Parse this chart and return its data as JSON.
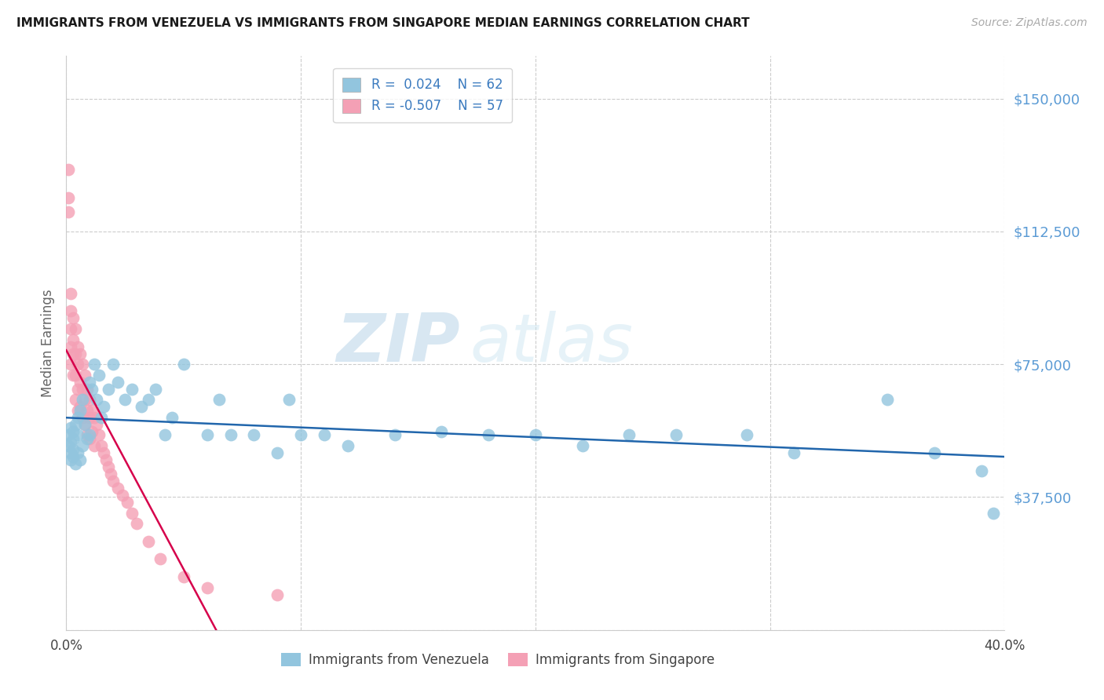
{
  "title": "IMMIGRANTS FROM VENEZUELA VS IMMIGRANTS FROM SINGAPORE MEDIAN EARNINGS CORRELATION CHART",
  "source": "Source: ZipAtlas.com",
  "ylabel": "Median Earnings",
  "xlim": [
    0.0,
    0.4
  ],
  "ylim": [
    0,
    162000
  ],
  "yticks": [
    0,
    37500,
    75000,
    112500,
    150000
  ],
  "ytick_labels": [
    "",
    "$37,500",
    "$75,000",
    "$112,500",
    "$150,000"
  ],
  "xticks": [
    0.0,
    0.1,
    0.2,
    0.3,
    0.4
  ],
  "xtick_labels": [
    "0.0%",
    "",
    "",
    "",
    "40.0%"
  ],
  "blue_color": "#92c5de",
  "pink_color": "#f4a0b5",
  "blue_line_color": "#2166ac",
  "pink_line_color": "#d6004b",
  "watermark_zip": "ZIP",
  "watermark_atlas": "atlas",
  "venezuela_x": [
    0.001,
    0.001,
    0.002,
    0.002,
    0.002,
    0.002,
    0.003,
    0.003,
    0.003,
    0.003,
    0.004,
    0.004,
    0.005,
    0.005,
    0.005,
    0.006,
    0.006,
    0.007,
    0.007,
    0.008,
    0.009,
    0.01,
    0.01,
    0.011,
    0.012,
    0.013,
    0.014,
    0.015,
    0.016,
    0.018,
    0.02,
    0.022,
    0.025,
    0.028,
    0.032,
    0.035,
    0.038,
    0.042,
    0.045,
    0.05,
    0.06,
    0.065,
    0.07,
    0.08,
    0.09,
    0.095,
    0.1,
    0.11,
    0.12,
    0.14,
    0.16,
    0.18,
    0.2,
    0.22,
    0.24,
    0.26,
    0.29,
    0.31,
    0.35,
    0.37,
    0.39,
    0.395
  ],
  "venezuela_y": [
    55000,
    52000,
    57000,
    53000,
    50000,
    48000,
    56000,
    54000,
    51000,
    49000,
    58000,
    47000,
    60000,
    55000,
    50000,
    62000,
    48000,
    65000,
    52000,
    58000,
    54000,
    70000,
    55000,
    68000,
    75000,
    65000,
    72000,
    60000,
    63000,
    68000,
    75000,
    70000,
    65000,
    68000,
    63000,
    65000,
    68000,
    55000,
    60000,
    75000,
    55000,
    65000,
    55000,
    55000,
    50000,
    65000,
    55000,
    55000,
    52000,
    55000,
    56000,
    55000,
    55000,
    52000,
    55000,
    55000,
    55000,
    50000,
    65000,
    50000,
    45000,
    33000
  ],
  "singapore_x": [
    0.001,
    0.001,
    0.001,
    0.002,
    0.002,
    0.002,
    0.002,
    0.002,
    0.003,
    0.003,
    0.003,
    0.003,
    0.004,
    0.004,
    0.004,
    0.004,
    0.005,
    0.005,
    0.005,
    0.005,
    0.006,
    0.006,
    0.006,
    0.007,
    0.007,
    0.007,
    0.008,
    0.008,
    0.008,
    0.009,
    0.009,
    0.009,
    0.01,
    0.01,
    0.01,
    0.011,
    0.011,
    0.012,
    0.012,
    0.013,
    0.014,
    0.015,
    0.016,
    0.017,
    0.018,
    0.019,
    0.02,
    0.022,
    0.024,
    0.026,
    0.028,
    0.03,
    0.035,
    0.04,
    0.05,
    0.06,
    0.09
  ],
  "singapore_y": [
    130000,
    122000,
    118000,
    95000,
    90000,
    85000,
    80000,
    75000,
    88000,
    82000,
    78000,
    72000,
    85000,
    78000,
    72000,
    65000,
    80000,
    75000,
    68000,
    62000,
    78000,
    70000,
    63000,
    75000,
    68000,
    60000,
    72000,
    65000,
    58000,
    68000,
    62000,
    55000,
    65000,
    60000,
    54000,
    62000,
    56000,
    60000,
    52000,
    58000,
    55000,
    52000,
    50000,
    48000,
    46000,
    44000,
    42000,
    40000,
    38000,
    36000,
    33000,
    30000,
    25000,
    20000,
    15000,
    12000,
    10000
  ],
  "singapore_line_x_start": 0.0,
  "singapore_line_x_end": 0.12,
  "venezuela_trend_slope": 0,
  "venezuela_trend_intercept": 55000
}
